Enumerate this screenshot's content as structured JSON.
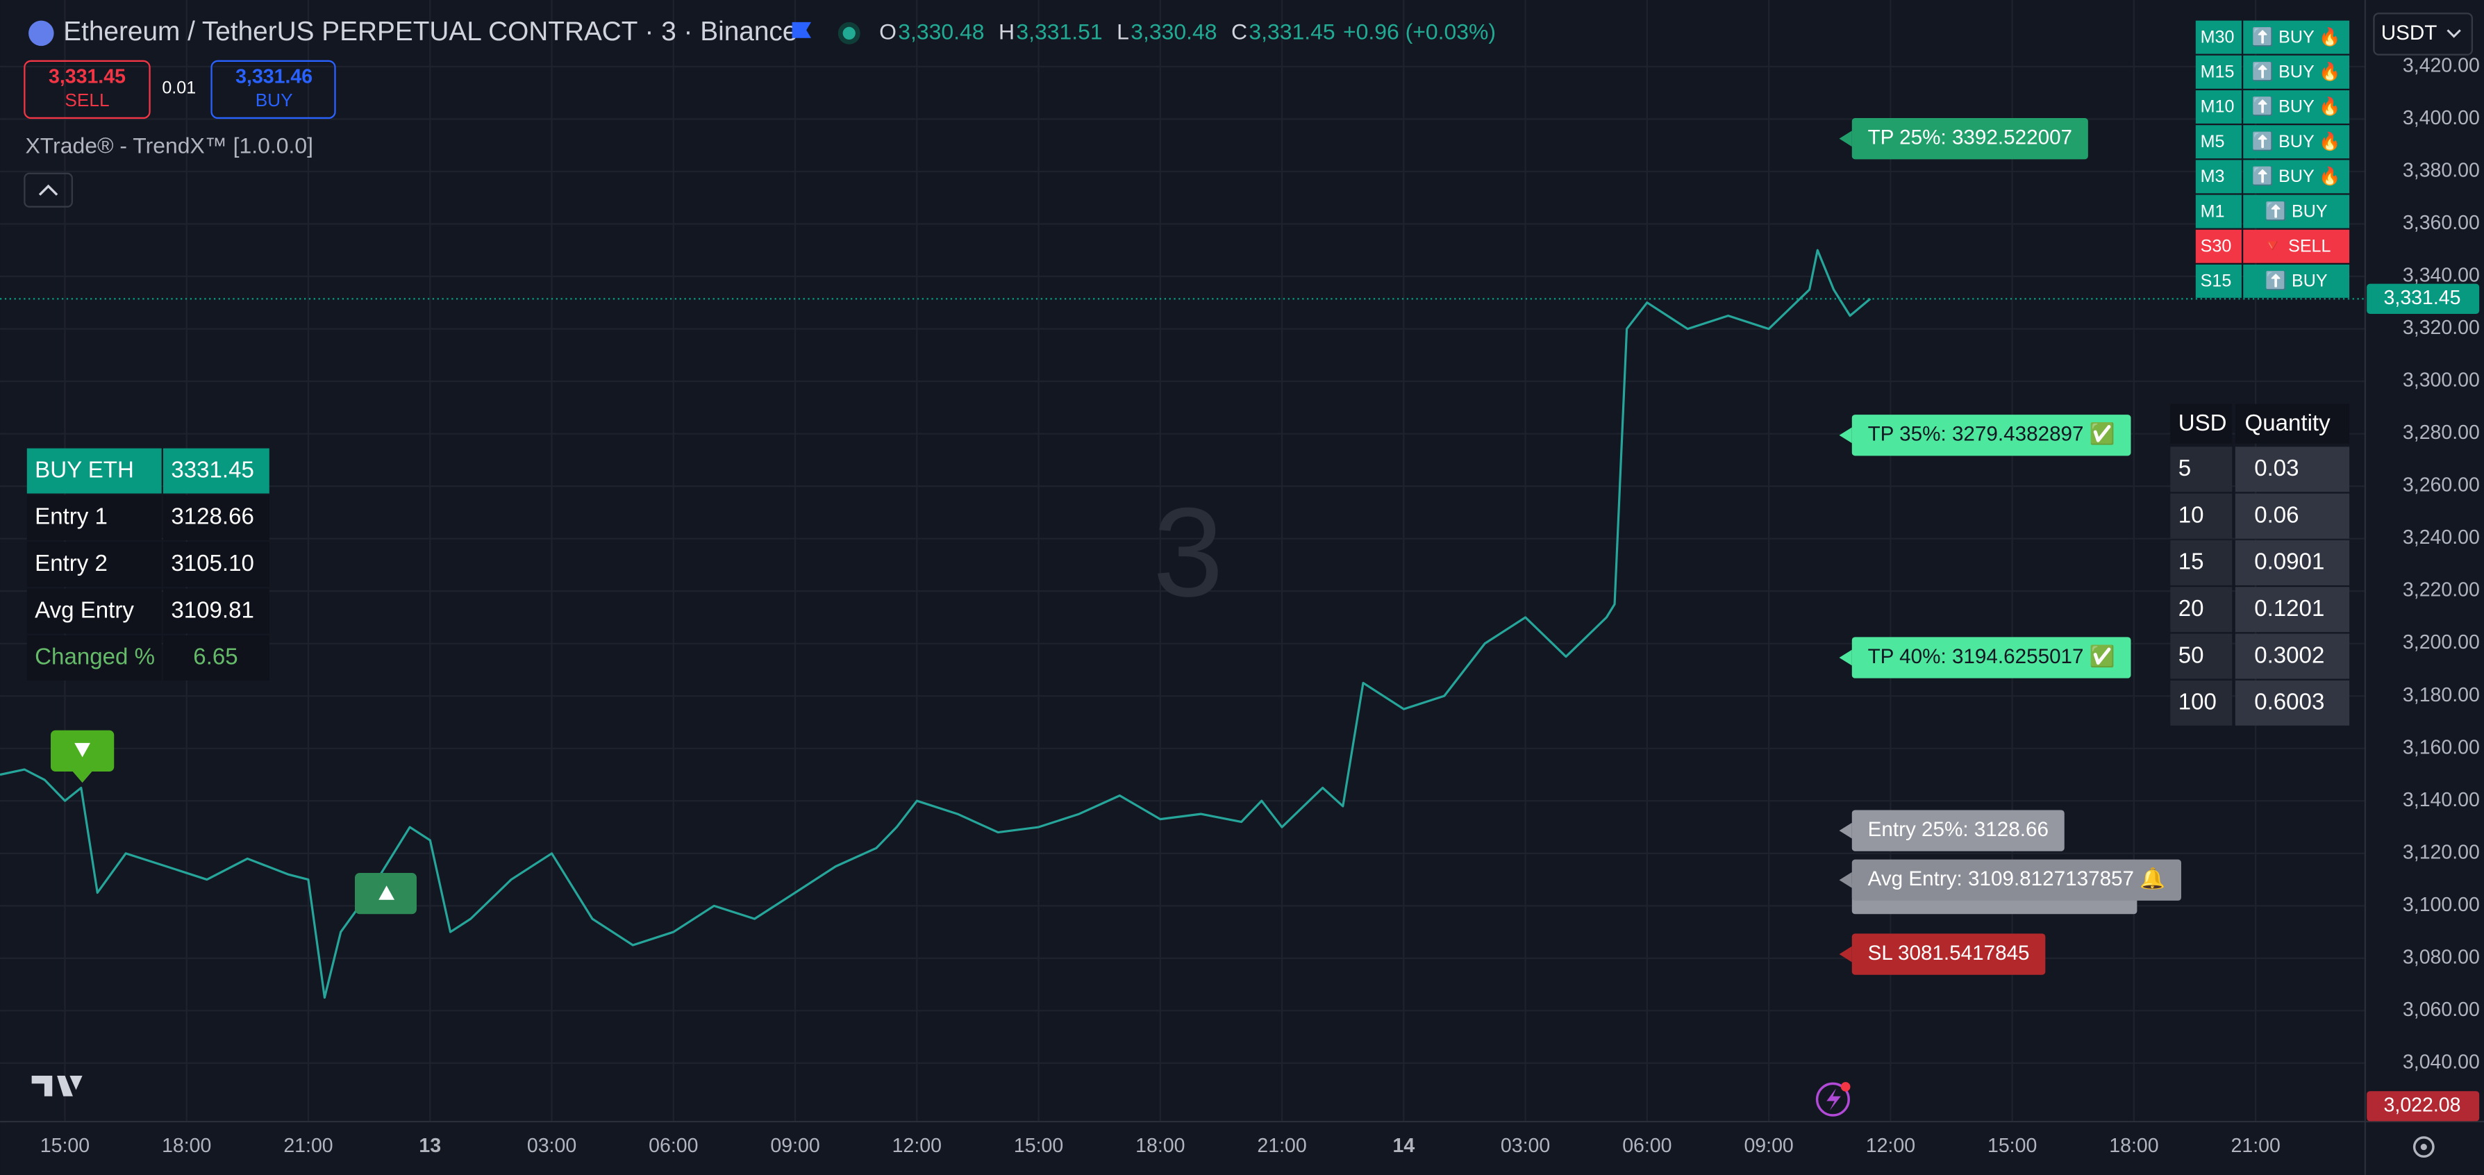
{
  "header": {
    "symbol": "Ethereum / TetherUS PERPETUAL CONTRACT · 3 · Binance",
    "ohlc": [
      {
        "key": "O",
        "value": "3,330.48"
      },
      {
        "key": "H",
        "value": "3,331.51"
      },
      {
        "key": "L",
        "value": "3,330.48"
      },
      {
        "key": "C",
        "value": "3,331.45"
      }
    ],
    "change": "+0.96 (+0.03%)"
  },
  "order_panel": {
    "sell_price": "3,331.45",
    "sell": "SELL",
    "quantity": "0.01",
    "buy_price": "3,331.46",
    "buy": "BUY"
  },
  "indicator": "XTrade® - TrendX™ [1.0.0.0]",
  "currency": "USDT",
  "watermark": "3",
  "position_table": {
    "rows": [
      [
        "BUY ETH",
        "3331.45"
      ],
      [
        "Entry 1",
        "3128.66"
      ],
      [
        "Entry 2",
        "3105.10"
      ],
      [
        "Avg Entry",
        "3109.81"
      ],
      [
        "Changed %",
        "6.65"
      ]
    ]
  },
  "signal_table": {
    "rows": [
      {
        "timeframe": "M30",
        "signal": "⬆️ BUY 🔥",
        "color": "#089981"
      },
      {
        "timeframe": "M15",
        "signal": "⬆️ BUY 🔥",
        "color": "#089981"
      },
      {
        "timeframe": "M10",
        "signal": "⬆️ BUY 🔥",
        "color": "#089981"
      },
      {
        "timeframe": "M5",
        "signal": "⬆️ BUY 🔥",
        "color": "#089981"
      },
      {
        "timeframe": "M3",
        "signal": "⬆️ BUY 🔥",
        "color": "#089981"
      },
      {
        "timeframe": "M1",
        "signal": "⬆️ BUY",
        "color": "#089981"
      },
      {
        "timeframe": "S30",
        "signal": "🔻 SELL",
        "color": "#f23645"
      },
      {
        "timeframe": "S15",
        "signal": "⬆️ BUY",
        "color": "#089981"
      }
    ]
  },
  "quantity_table": {
    "header": [
      "USD",
      "Quantity"
    ],
    "rows": [
      [
        "5",
        "0.03"
      ],
      [
        "10",
        "0.06"
      ],
      [
        "15",
        "0.0901"
      ],
      [
        "20",
        "0.1201"
      ],
      [
        "50",
        "0.3002"
      ],
      [
        "100",
        "0.6003"
      ]
    ]
  },
  "levels": [
    {
      "value": 3392.522007,
      "label": "TP 25%: 3392.522007",
      "color": "#22a06b"
    },
    {
      "value": 3279.4382897,
      "label": "TP 35%: 3279.4382897 ✅",
      "color": "#4ee79e"
    },
    {
      "value": 3194.6255017,
      "label": "TP 40%: 3194.6255017 ✅",
      "color": "#4ee79e"
    },
    {
      "value": 3128.66,
      "label": "Entry 25%: 3128.66",
      "color": "#9598a1"
    },
    {
      "value": 3109.8127137857,
      "label": "Avg Entry: 3109.8127137857 🔔",
      "color": "#8a8d96"
    },
    {
      "value": 3081.5417845,
      "label": "SL 3081.5417845",
      "color": "#b2282b"
    }
  ],
  "chart": {
    "type": "line",
    "color": "#26a69a",
    "xlim": [
      13.4,
      71.7
    ],
    "ylim": [
      3017.7,
      3445.4
    ],
    "grid": true,
    "xticks": [
      {
        "value": 15,
        "label": "15:00"
      },
      {
        "value": 18,
        "label": "18:00"
      },
      {
        "value": 21,
        "label": "21:00"
      },
      {
        "value": 24,
        "label": "13"
      },
      {
        "value": 27,
        "label": "03:00"
      },
      {
        "value": 30,
        "label": "06:00"
      },
      {
        "value": 33,
        "label": "09:00"
      },
      {
        "value": 36,
        "label": "12:00"
      },
      {
        "value": 39,
        "label": "15:00"
      },
      {
        "value": 42,
        "label": "18:00"
      },
      {
        "value": 45,
        "label": "21:00"
      },
      {
        "value": 48,
        "label": "14"
      },
      {
        "value": 51,
        "label": "03:00"
      },
      {
        "value": 54,
        "label": "06:00"
      },
      {
        "value": 57,
        "label": "09:00"
      },
      {
        "value": 60,
        "label": "12:00"
      },
      {
        "value": 63,
        "label": "15:00"
      },
      {
        "value": 66,
        "label": "18:00"
      },
      {
        "value": 69,
        "label": "21:00"
      }
    ],
    "yticks": [
      {
        "value": 3040,
        "label": "3,040.00"
      },
      {
        "value": 3060,
        "label": "3,060.00"
      },
      {
        "value": 3080,
        "label": "3,080.00"
      },
      {
        "value": 3100,
        "label": "3,100.00"
      },
      {
        "value": 3120,
        "label": "3,120.00"
      },
      {
        "value": 3140,
        "label": "3,140.00"
      },
      {
        "value": 3160,
        "label": "3,160.00"
      },
      {
        "value": 3180,
        "label": "3,180.00"
      },
      {
        "value": 3200,
        "label": "3,200.00"
      },
      {
        "value": 3220,
        "label": "3,220.00"
      },
      {
        "value": 3240,
        "label": "3,240.00"
      },
      {
        "value": 3260,
        "label": "3,260.00"
      },
      {
        "value": 3280,
        "label": "3,280.00"
      },
      {
        "value": 3300,
        "label": "3,300.00"
      },
      {
        "value": 3320,
        "label": "3,320.00"
      },
      {
        "value": 3340,
        "label": "3,340.00"
      },
      {
        "value": 3360,
        "label": "3,360.00"
      },
      {
        "value": 3380,
        "label": "3,380.00"
      },
      {
        "value": 3400,
        "label": "3,400.00"
      },
      {
        "value": 3420,
        "label": "3,420.00"
      }
    ],
    "x": [
      13.4,
      14,
      14.5,
      15,
      15.4,
      15.8,
      16.5,
      17.5,
      18.5,
      19.5,
      20.5,
      21,
      21.4,
      21.8,
      22.5,
      23.5,
      24,
      24.5,
      25,
      26,
      27,
      28,
      29,
      30,
      31,
      32,
      33,
      34,
      35,
      35.5,
      36,
      37,
      38,
      39,
      40,
      41,
      42,
      43,
      44,
      44.5,
      45,
      46,
      46.5,
      47,
      48,
      49,
      50,
      51,
      52,
      53,
      53.2,
      53.5,
      54,
      55,
      56,
      57,
      58,
      58.2,
      58.6,
      59,
      59.5
    ],
    "values": [
      3150,
      3152,
      3148,
      3140,
      3145,
      3105,
      3120,
      3115,
      3110,
      3118,
      3112,
      3110,
      3065,
      3090,
      3105,
      3130,
      3125,
      3090,
      3095,
      3110,
      3120,
      3095,
      3085,
      3090,
      3100,
      3095,
      3105,
      3115,
      3122,
      3130,
      3140,
      3135,
      3128,
      3130,
      3135,
      3142,
      3133,
      3135,
      3132,
      3140,
      3130,
      3145,
      3138,
      3185,
      3175,
      3180,
      3200,
      3210,
      3195,
      3210,
      3215,
      3320,
      3330,
      3320,
      3325,
      3320,
      3335,
      3350,
      3335,
      3325,
      3331.45
    ],
    "last_price": {
      "value": 3331.45,
      "label": "3,331.45"
    },
    "low_price": {
      "value": 3022.08,
      "label": "3,022.08"
    }
  }
}
